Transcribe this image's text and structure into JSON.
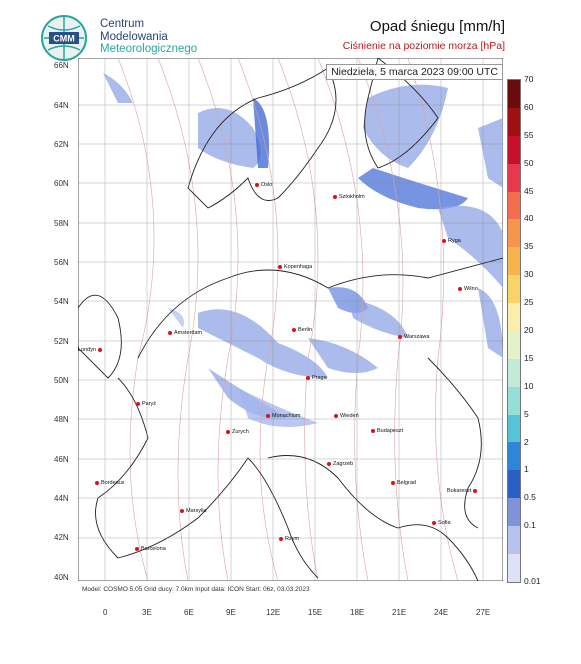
{
  "logo": {
    "line1": "Centrum",
    "line2": "Modelowania",
    "line3": "Meteorologicznego",
    "mark_text": "CMM"
  },
  "title": "Opad śniegu [mm/h]",
  "subtitle": "Ciśnienie na poziomie morza [hPa]",
  "datetime": "Niedziela, 5 marca 2023 09:00 UTC",
  "footer": "Model: COSMO 5.05  Grid ducy: 7.0km   Input data: ICON   Start: 06z, 03.03.2023",
  "lat_labels": [
    "66N",
    "64N",
    "62N",
    "60N",
    "58N",
    "56N",
    "54N",
    "52N",
    "50N",
    "48N",
    "46N",
    "44N",
    "42N",
    "40N"
  ],
  "lon_labels": [
    "0",
    "3E",
    "6E",
    "9E",
    "12E",
    "15E",
    "18E",
    "21E",
    "24E",
    "27E"
  ],
  "colorbar": {
    "labels": [
      "70",
      "60",
      "55",
      "50",
      "45",
      "40",
      "35",
      "30",
      "25",
      "20",
      "15",
      "10",
      "5",
      "2",
      "1",
      "0.5",
      "0.1",
      "0.01"
    ],
    "colors": [
      "#6b0b0b",
      "#a00f12",
      "#c8102d",
      "#e8384b",
      "#f26e4f",
      "#f6954b",
      "#f7b44d",
      "#f7d36a",
      "#fbeeaa",
      "#e3f2c8",
      "#c3ead9",
      "#96dfd6",
      "#56c3d6",
      "#2d86d8",
      "#2a5fc5",
      "#7d95d8",
      "#b7c3ec",
      "#dde2f7"
    ]
  },
  "cities": [
    {
      "name": "Oslo"
    },
    {
      "name": "Sztokholm"
    },
    {
      "name": "Ryga"
    },
    {
      "name": "Kopenhaga"
    },
    {
      "name": "Wilno"
    },
    {
      "name": "Amsterdam"
    },
    {
      "name": "Berlin"
    },
    {
      "name": "Warszawa"
    },
    {
      "name": "Londyn"
    },
    {
      "name": "Praga"
    },
    {
      "name": "Paryż"
    },
    {
      "name": "Monachium"
    },
    {
      "name": "Wiedeń"
    },
    {
      "name": "Zurych"
    },
    {
      "name": "Budapeszt"
    },
    {
      "name": "Zagrzeb"
    },
    {
      "name": "Bordeaux"
    },
    {
      "name": "Belgrad"
    },
    {
      "name": "Bukareszt"
    },
    {
      "name": "Marsylia"
    },
    {
      "name": "Sofia"
    },
    {
      "name": "Rzym"
    },
    {
      "name": "Barcelona"
    }
  ]
}
